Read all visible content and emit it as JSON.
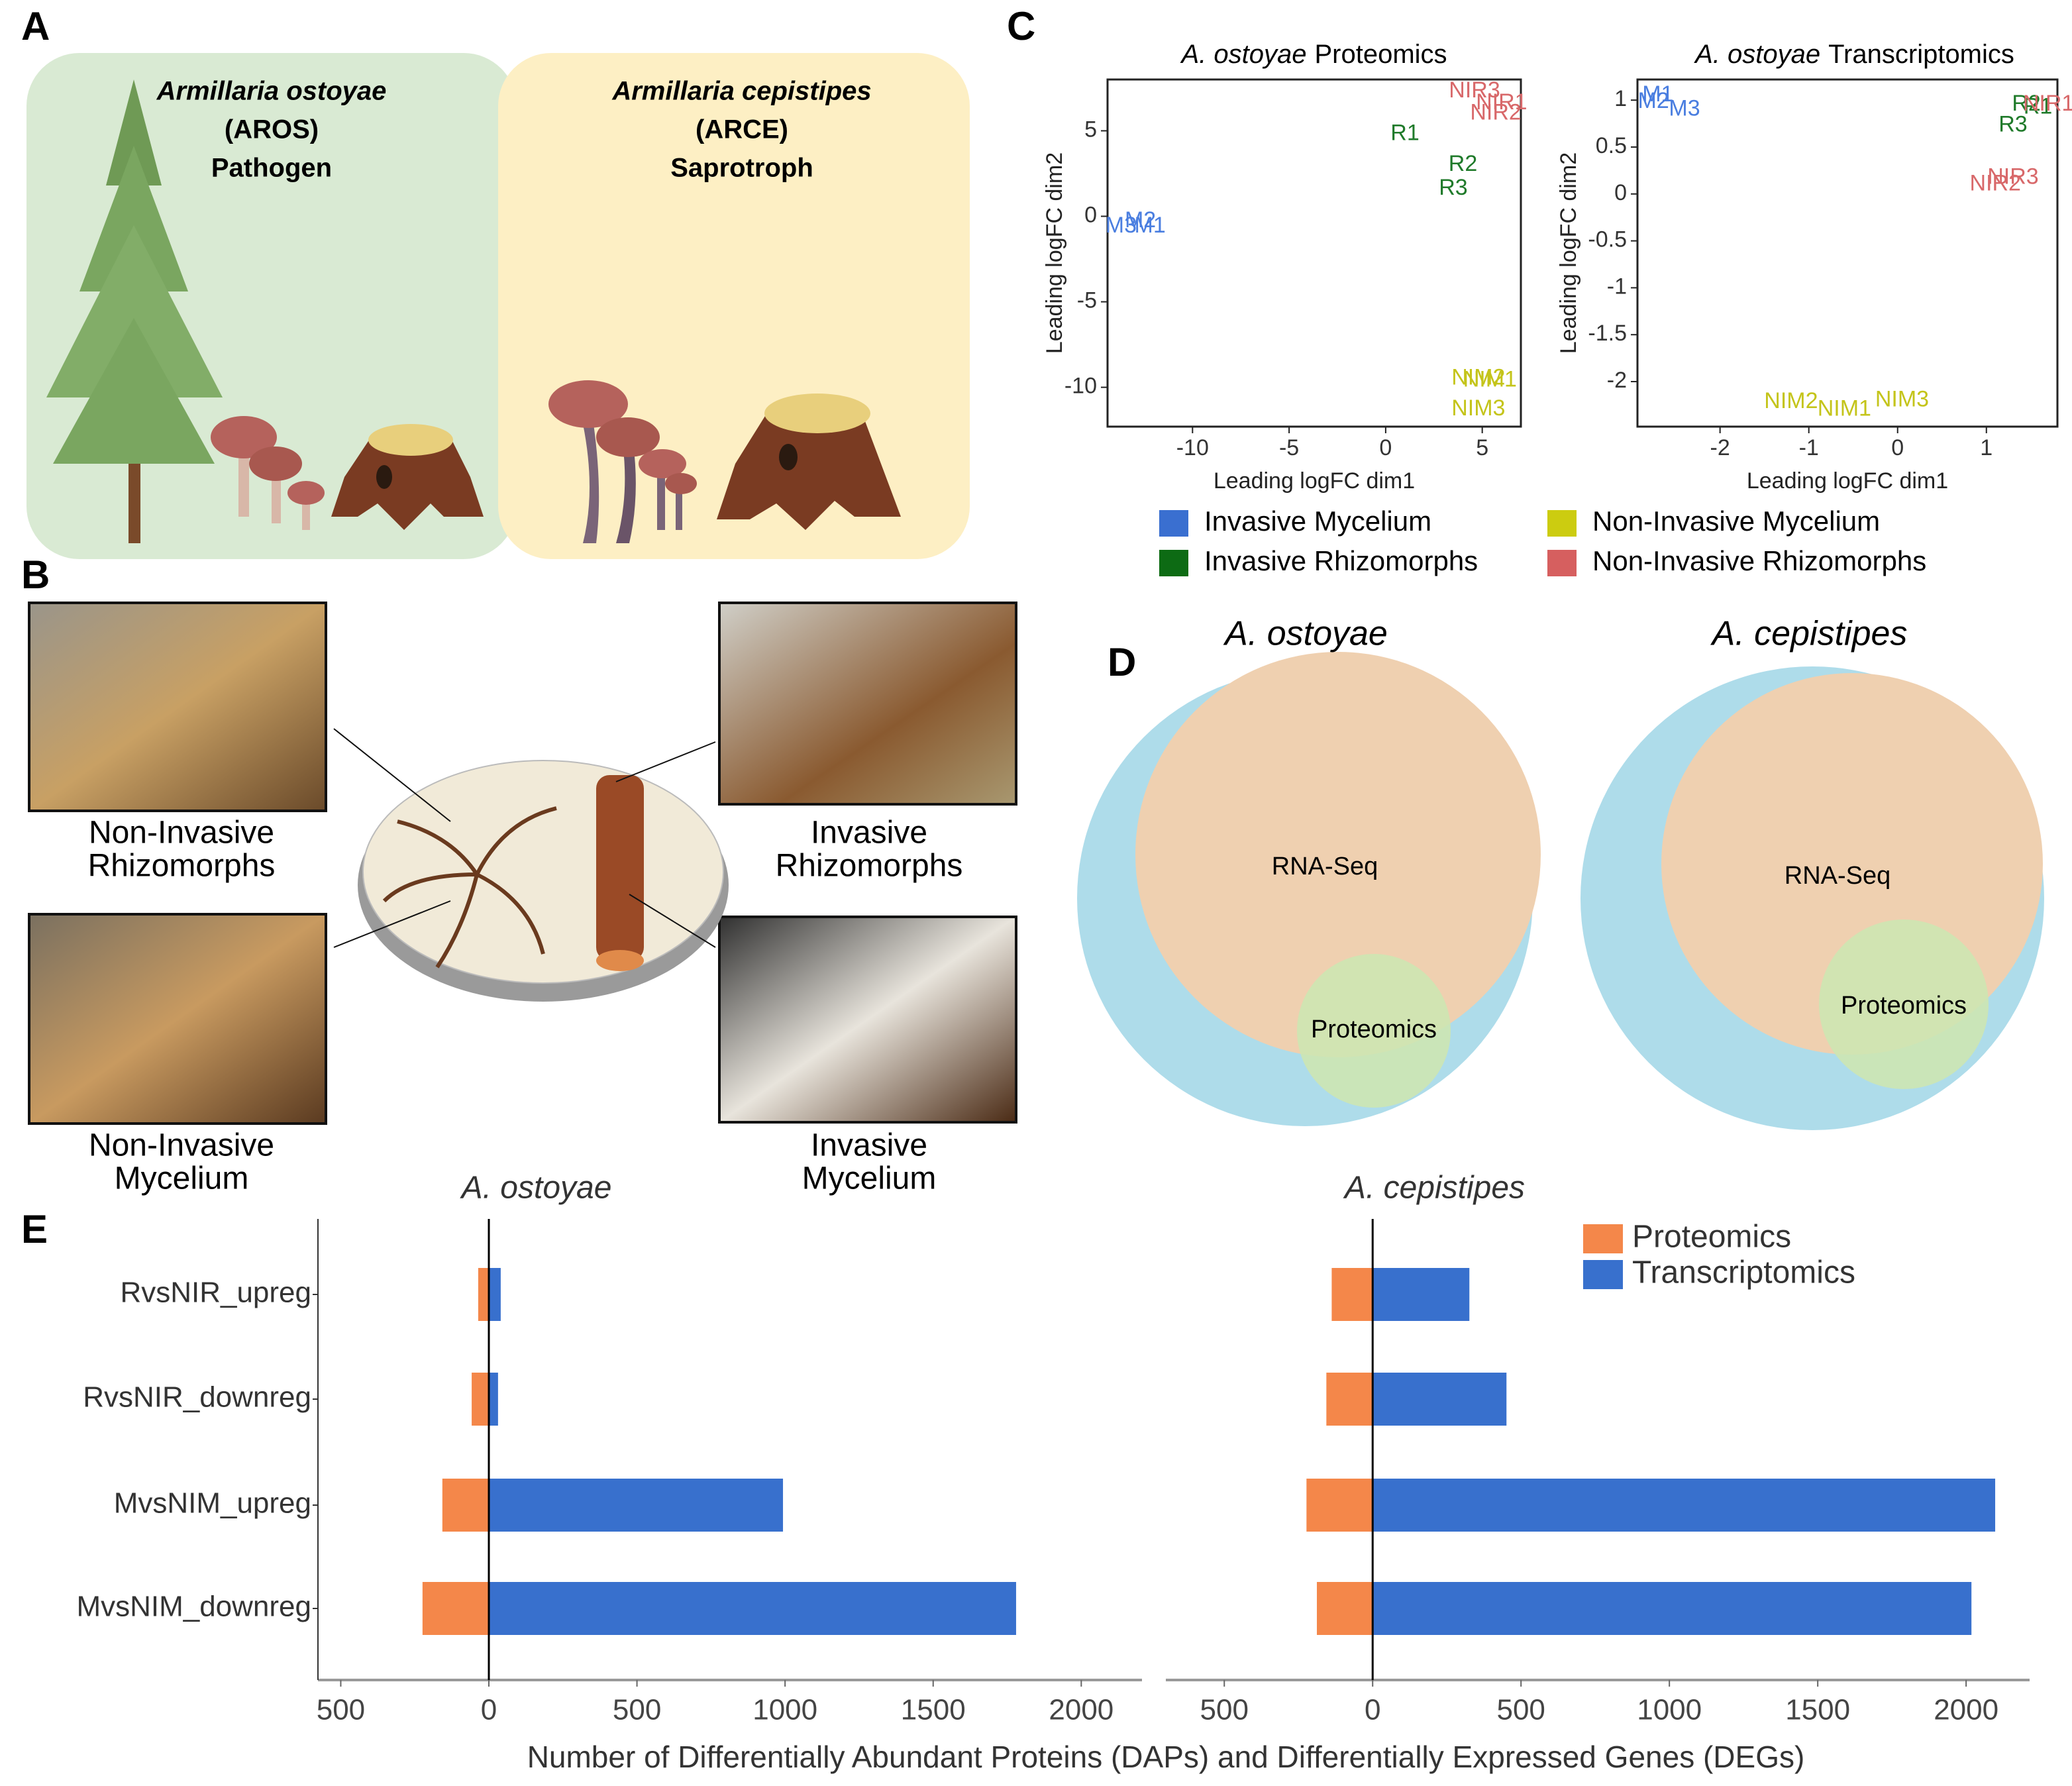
{
  "panel_labels": [
    "A",
    "B",
    "C",
    "D",
    "E"
  ],
  "panel_a": {
    "organisms": [
      {
        "name": "Armillaria ostoyae",
        "code": "(AROS)",
        "lifestyle": "Pathogen"
      },
      {
        "name": "Armillaria cepistipes",
        "code": "(ARCE)",
        "lifestyle": "Saprotroph"
      }
    ]
  },
  "panel_b": {
    "samples": [
      [
        "Non-Invasive",
        "Rhizomorphs"
      ],
      [
        "Invasive",
        "Rhizomorphs"
      ],
      [
        "Non-Invasive",
        "Mycelium"
      ],
      [
        "Invasive",
        "Mycelium"
      ]
    ]
  },
  "legend_c": [
    {
      "name": "Invasive Mycelium",
      "color": "#3a6fd0"
    },
    {
      "name": "Invasive Rhizomorphs",
      "color": "#0d6b14"
    },
    {
      "name": "Non-Invasive Mycelium",
      "color": "#cccc10"
    },
    {
      "name": "Non-Invasive Rhizomorphs",
      "color": "#d65f5f"
    }
  ],
  "panel_d": {
    "venns": [
      {
        "title": "A. ostoyae",
        "labels": [
          "RNA-Seq",
          "Proteomics"
        ]
      },
      {
        "title": "A. cepistipes",
        "labels": [
          "RNA-Seq",
          "Proteomics"
        ]
      }
    ]
  },
  "chart_data": [
    {
      "type": "scatter",
      "title": [
        "A. ostoyae",
        "Proteomics"
      ],
      "xlabel": "Leading logFC dim1",
      "ylabel": "Leading logFC dim2",
      "xlim": [
        -14.4,
        7.0
      ],
      "ylim": [
        -12.3,
        8.0
      ],
      "xticks": [
        -10,
        -5,
        0,
        5
      ],
      "yticks": [
        -10,
        -5,
        0,
        5
      ],
      "series": [
        {
          "color": "#4a7ee0",
          "labels": [
            "M3",
            "M2",
            "M1"
          ],
          "x": [
            -13.7,
            -12.7,
            -12.2
          ],
          "y": [
            -0.6,
            -0.3,
            -0.6
          ]
        },
        {
          "color": "#1f7a2a",
          "labels": [
            "R1",
            "R2",
            "R3"
          ],
          "x": [
            1.0,
            4.0,
            3.5
          ],
          "y": [
            4.8,
            3.0,
            1.6
          ]
        },
        {
          "color": "#c4c41a",
          "labels": [
            "NIM2",
            "NIM1",
            "NIM3"
          ],
          "x": [
            4.8,
            5.4,
            4.8
          ],
          "y": [
            -9.5,
            -9.6,
            -11.3
          ]
        },
        {
          "color": "#d8686a",
          "labels": [
            "NIR3",
            "NIR1",
            "NIR2"
          ],
          "x": [
            4.6,
            6.0,
            5.7
          ],
          "y": [
            7.3,
            6.6,
            6.0
          ]
        }
      ]
    },
    {
      "type": "scatter",
      "title": [
        "A. ostoyae",
        "Transcriptomics"
      ],
      "xlabel": "Leading logFC dim1",
      "ylabel": "Leading logFC dim2",
      "xlim": [
        -2.93,
        1.8
      ],
      "ylim": [
        -2.48,
        1.22
      ],
      "xticks": [
        -2,
        -1,
        0,
        1
      ],
      "yticks": [
        -2,
        -1.5,
        -1,
        -0.5,
        0,
        0.5,
        1
      ],
      "series": [
        {
          "color": "#4a7ee0",
          "labels": [
            "M1",
            "M2",
            "M3"
          ],
          "x": [
            -2.7,
            -2.75,
            -2.4
          ],
          "y": [
            1.05,
            0.98,
            0.9
          ]
        },
        {
          "color": "#1f7a2a",
          "labels": [
            "R2",
            "R1",
            "R3"
          ],
          "x": [
            1.45,
            1.58,
            1.3
          ],
          "y": [
            0.95,
            0.92,
            0.73
          ]
        },
        {
          "color": "#c4c41a",
          "labels": [
            "NIM2",
            "NIM1",
            "NIM3"
          ],
          "x": [
            -1.2,
            -0.6,
            0.05
          ],
          "y": [
            -2.22,
            -2.3,
            -2.2
          ]
        },
        {
          "color": "#d8686a",
          "labels": [
            "NIR1",
            "NIR3",
            "NIR2"
          ],
          "x": [
            1.7,
            1.3,
            1.1
          ],
          "y": [
            0.95,
            0.17,
            0.1
          ]
        }
      ]
    },
    {
      "type": "hbar",
      "title": "A. ostoyae",
      "xlabel": "Number of Differentially Abundant Proteins (DAPs) and Differentially Expressed Genes (DEGs)",
      "categories": [
        "RvsNIR_upreg",
        "RvsNIR_downreg",
        "MvsNIM_upreg",
        "MvsNIM_downreg"
      ],
      "xlim": [
        -577,
        2205
      ],
      "xticks": [
        {
          "value": -500,
          "label": "500"
        },
        0,
        500,
        1000,
        1500,
        2000
      ],
      "series": [
        {
          "color": "#f4874a",
          "values": [
            -36,
            -58,
            -157,
            -224
          ]
        },
        {
          "color": "#3870cd",
          "values": [
            40,
            31,
            993,
            1780
          ]
        }
      ]
    },
    {
      "type": "hbar",
      "title": "A. cepistipes",
      "xlim": [
        -697,
        2214
      ],
      "xticks": [
        {
          "value": -500,
          "label": "500"
        },
        0,
        500,
        1000,
        1500,
        2000
      ],
      "series": [
        {
          "name": "Proteomics",
          "color": "#f4874a",
          "values": [
            -138,
            -156,
            -223,
            -188
          ]
        },
        {
          "name": "Transcriptomics",
          "color": "#3870cd",
          "values": [
            326,
            451,
            2098,
            2018
          ]
        }
      ]
    }
  ]
}
